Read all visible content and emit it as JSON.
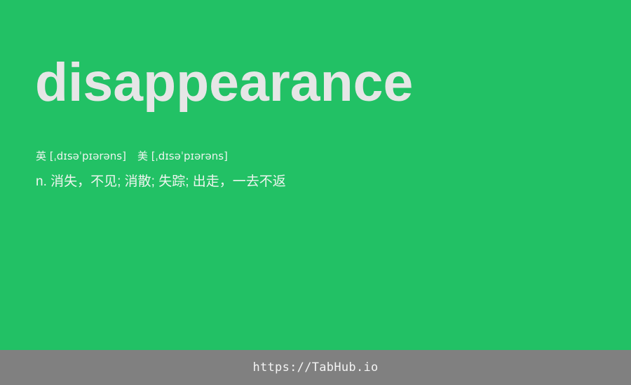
{
  "card": {
    "word": "disappearance",
    "phonetics": {
      "uk_label": "英",
      "uk_ipa": "[ˌdɪsəˈpɪərəns]",
      "us_label": "美",
      "us_ipa": "[ˌdɪsəˈpɪərəns]"
    },
    "definition": "n. 消失，不见; 消散; 失踪; 出走，一去不返"
  },
  "footer": {
    "link_text": "https://TabHub.io"
  },
  "colors": {
    "background": "#22c165",
    "footer": "#808080",
    "word": "#e6e6e6"
  }
}
